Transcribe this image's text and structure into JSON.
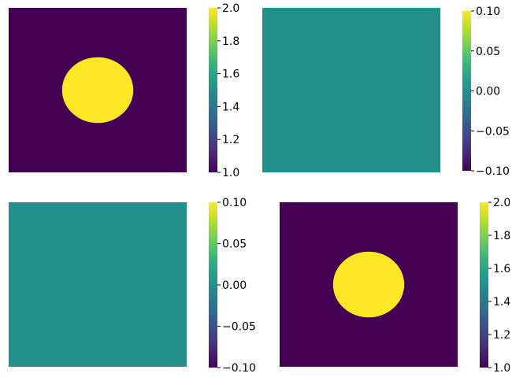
{
  "chart_data": [
    {
      "type": "heatmap",
      "title": "",
      "xlabel": "",
      "ylabel": "",
      "pattern": "disk",
      "value_inside": 2.0,
      "value_outside": 1.0,
      "disk_center": [
        0.5,
        0.5
      ],
      "disk_radius": 0.2,
      "colorbar": {
        "min": 1.0,
        "max": 2.0,
        "ticks": [
          1.0,
          1.2,
          1.4,
          1.6,
          1.8,
          2.0
        ],
        "tick_labels": [
          "1.0",
          "1.2",
          "1.4",
          "1.6",
          "1.8",
          "2.0"
        ]
      }
    },
    {
      "type": "heatmap",
      "title": "",
      "xlabel": "",
      "ylabel": "",
      "pattern": "uniform",
      "value": 0.0,
      "colorbar": {
        "min": -0.1,
        "max": 0.1,
        "ticks": [
          -0.1,
          -0.05,
          0.0,
          0.05,
          0.1
        ],
        "tick_labels": [
          "−0.10",
          "−0.05",
          "0.00",
          "0.05",
          "0.10"
        ]
      }
    },
    {
      "type": "heatmap",
      "title": "",
      "xlabel": "",
      "ylabel": "",
      "pattern": "uniform",
      "value": 0.0,
      "colorbar": {
        "min": -0.1,
        "max": 0.1,
        "ticks": [
          -0.1,
          -0.05,
          0.0,
          0.05,
          0.1
        ],
        "tick_labels": [
          "−0.10",
          "−0.05",
          "0.00",
          "0.05",
          "0.10"
        ]
      }
    },
    {
      "type": "heatmap",
      "title": "",
      "xlabel": "",
      "ylabel": "",
      "pattern": "disk",
      "value_inside": 2.0,
      "value_outside": 1.0,
      "disk_center": [
        0.5,
        0.5
      ],
      "disk_radius": 0.2,
      "colorbar": {
        "min": 1.0,
        "max": 2.0,
        "ticks": [
          1.0,
          1.2,
          1.4,
          1.6,
          1.8,
          2.0
        ],
        "tick_labels": [
          "1.0",
          "1.2",
          "1.4",
          "1.6",
          "1.8",
          "2.0"
        ]
      }
    }
  ],
  "colormap": {
    "name": "viridis",
    "stops": [
      "#440154",
      "#482878",
      "#3e4989",
      "#31688e",
      "#26828e",
      "#1f9e89",
      "#35b779",
      "#6ece58",
      "#b5de2b",
      "#fde725"
    ]
  }
}
